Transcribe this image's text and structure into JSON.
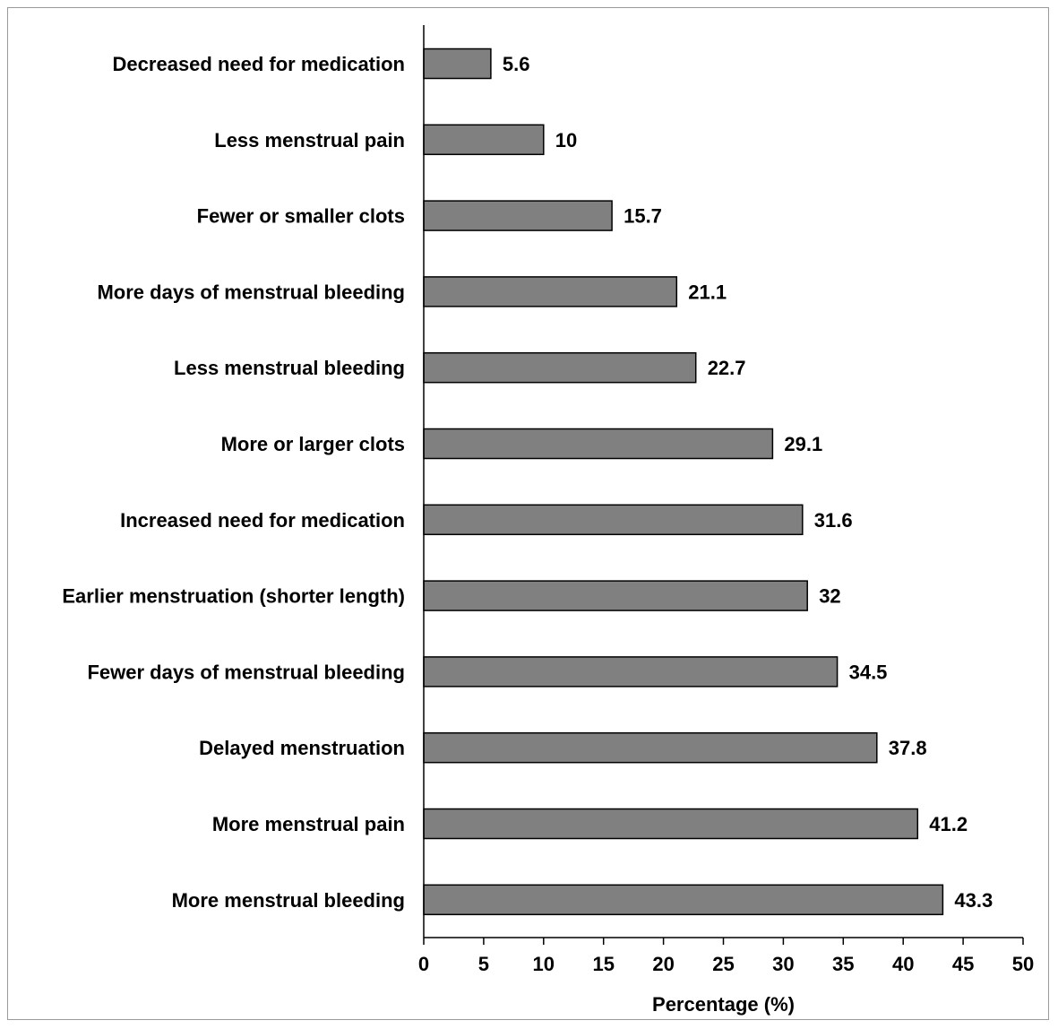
{
  "chart_data": {
    "type": "bar",
    "orientation": "horizontal",
    "categories": [
      "Decreased need for medication",
      "Less menstrual pain",
      "Fewer or smaller clots",
      "More days of menstrual bleeding",
      "Less menstrual bleeding",
      "More or larger clots",
      "Increased need for medication",
      "Earlier menstruation (shorter length)",
      "Fewer days of menstrual bleeding",
      "Delayed menstruation",
      "More menstrual pain",
      "More menstrual bleeding"
    ],
    "values": [
      5.6,
      10,
      15.7,
      21.1,
      22.7,
      29.1,
      31.6,
      32,
      34.5,
      37.8,
      41.2,
      43.3
    ],
    "value_labels": [
      "5.6",
      "10",
      "15.7",
      "21.1",
      "22.7",
      "29.1",
      "31.6",
      "32",
      "34.5",
      "37.8",
      "41.2",
      "43.3"
    ],
    "title": "",
    "xlabel": "Percentage (%)",
    "ylabel": "",
    "xlim": [
      0,
      50
    ],
    "xticks": [
      0,
      5,
      10,
      15,
      20,
      25,
      30,
      35,
      40,
      45,
      50
    ],
    "xtick_labels": [
      "0",
      "5",
      "10",
      "15",
      "20",
      "25",
      "30",
      "35",
      "40",
      "45",
      "50"
    ],
    "grid": false,
    "legend": "none",
    "bar_color": "#808080",
    "bar_edge_color": "#000000"
  }
}
